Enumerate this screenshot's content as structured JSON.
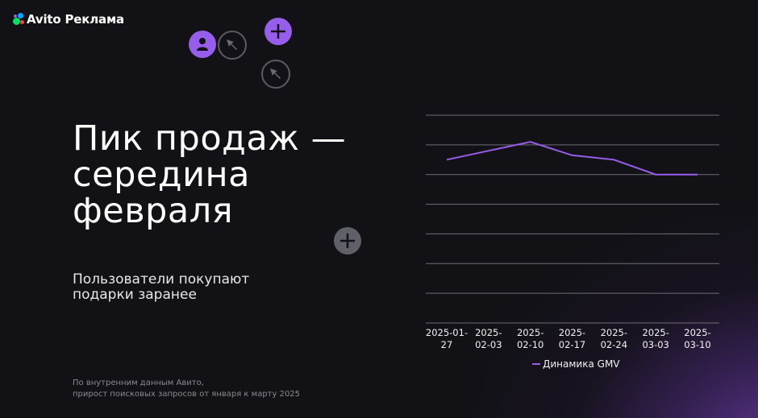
{
  "brand": {
    "logo_text": "Avito Реклама",
    "colors": {
      "purple": "#965eeb",
      "blue": "#00aaff",
      "green": "#04e061",
      "red": "#ff4053"
    }
  },
  "decor_icons": [
    {
      "name": "user-icon",
      "bg": "#965eeb"
    },
    {
      "name": "cursor-arrow-icon"
    },
    {
      "name": "plus-icon",
      "bg": "#965eeb"
    },
    {
      "name": "cursor-arrow-icon"
    },
    {
      "name": "plus-icon",
      "bg": "#5f6068"
    }
  ],
  "slide": {
    "title_lines": [
      "Пик продаж —",
      "середина",
      "февраля"
    ],
    "subtitle_lines": [
      "Пользователи покупают",
      "подарки заранее"
    ],
    "footnote_lines": [
      "По внутренним данным Авито,",
      "прирост поисковых запросов от января к марту 2025"
    ]
  },
  "chart_data": {
    "type": "line",
    "title": "",
    "xlabel": "",
    "ylabel": "",
    "categories": [
      "2025-01-27",
      "2025-02-03",
      "2025-02-10",
      "2025-02-17",
      "2025-02-24",
      "2025-03-03",
      "2025-03-10"
    ],
    "category_labels": [
      [
        "2025-01-",
        "27"
      ],
      [
        "2025-",
        "02-03"
      ],
      [
        "2025-",
        "02-10"
      ],
      [
        "2025-",
        "02-17"
      ],
      [
        "2025-",
        "02-24"
      ],
      [
        "2025-",
        "03-03"
      ],
      [
        "2025-",
        "03-10"
      ]
    ],
    "series": [
      {
        "name": "Динамика GMV",
        "color": "#965eeb",
        "values": [
          5.5,
          5.8,
          6.1,
          5.65,
          5.5,
          5.0,
          5.0
        ]
      }
    ],
    "ylim": [
      0,
      7
    ],
    "y_ticks_shown": false,
    "grid": true,
    "gridline_count": 8,
    "legend_position": "bottom",
    "legend": [
      "Динамика GMV"
    ]
  }
}
